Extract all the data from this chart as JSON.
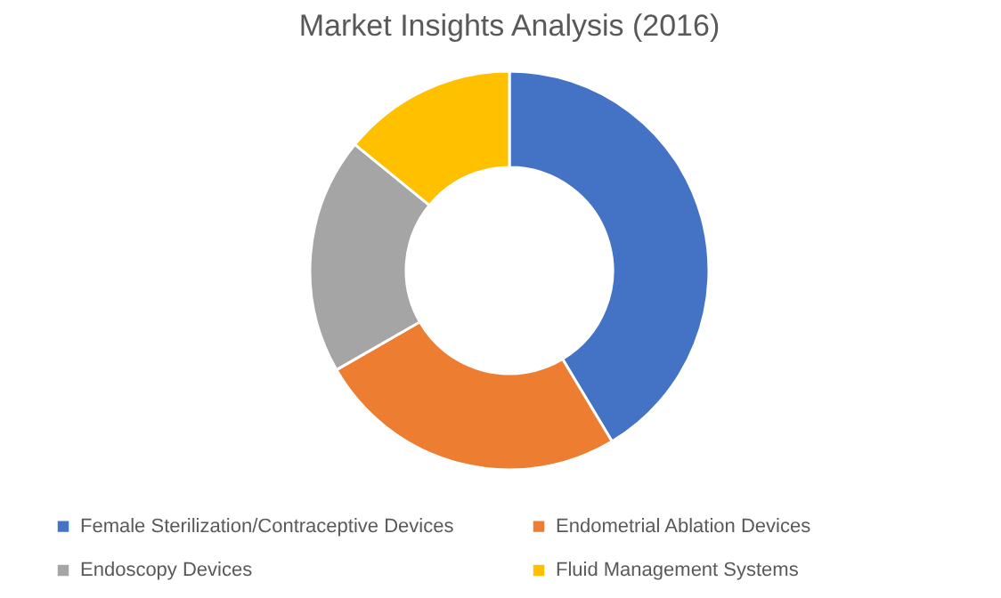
{
  "chart_data": {
    "type": "donut",
    "title": "Market Insights Analysis (2016)",
    "categories": [
      "Female Sterilization/Contraceptive Devices",
      "Endometrial Ablation Devices",
      "Endoscopy Devices",
      "Fluid Management Systems"
    ],
    "values": [
      41.4,
      25.3,
      19.2,
      14.1
    ],
    "colors": [
      "#4472c4",
      "#ed7d31",
      "#a5a5a5",
      "#ffc000"
    ],
    "legend": "bottom"
  }
}
